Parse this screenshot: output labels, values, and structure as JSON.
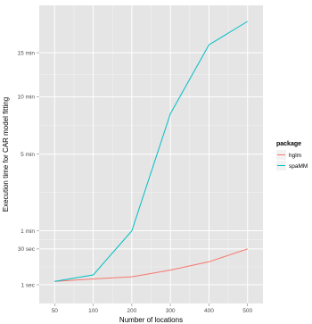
{
  "chart_data": {
    "type": "line",
    "title": "",
    "xlabel": "Number of locations",
    "ylabel": "Execution time for CAR model fitting",
    "x": [
      50,
      100,
      200,
      300,
      400,
      500
    ],
    "x_tick_labels": [
      "50",
      "100",
      "200",
      "300",
      "400",
      "500"
    ],
    "y_ticks": [
      {
        "value": 1,
        "label": "1 sec"
      },
      {
        "value": 30,
        "label": "30 sec"
      },
      {
        "value": 60,
        "label": "1 min"
      },
      {
        "value": 300,
        "label": "5 min"
      },
      {
        "value": 600,
        "label": "10 min"
      },
      {
        "value": 900,
        "label": "15 min"
      }
    ],
    "y_scale": "sqrt",
    "ylim": [
      0,
      1150
    ],
    "grid": true,
    "legend": {
      "title": "package",
      "placement": "right"
    },
    "series": [
      {
        "name": "hglm",
        "color": "#F8766D",
        "values": [
          2,
          3,
          4,
          8,
          15,
          30
        ]
      },
      {
        "name": "spaMM",
        "color": "#00BFC4",
        "values": [
          2,
          5,
          60,
          500,
          960,
          1150
        ]
      }
    ]
  }
}
